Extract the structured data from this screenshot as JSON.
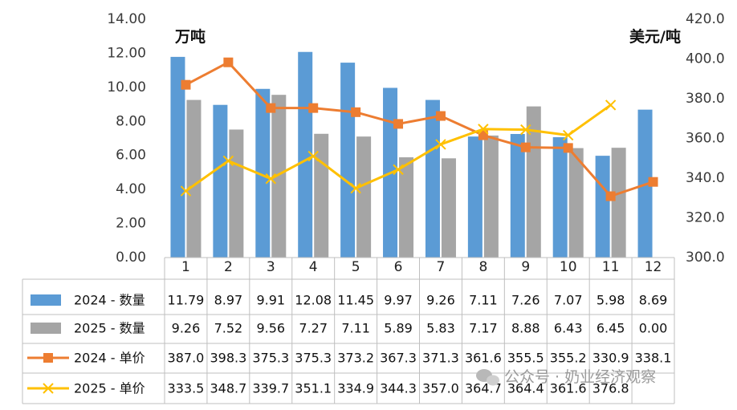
{
  "watermark": {
    "text": "公众号 · 奶业经济观察",
    "icon": "wechat-icon"
  },
  "chart_data": {
    "type": "bar",
    "combo": "bar + line with data table",
    "left_unit": "万吨",
    "right_unit": "美元/吨",
    "categories": [
      "1",
      "2",
      "3",
      "4",
      "5",
      "6",
      "7",
      "8",
      "9",
      "10",
      "11",
      "12"
    ],
    "y_left": {
      "min": 0,
      "max": 14,
      "step": 2,
      "ticks": [
        "0.00",
        "2.00",
        "4.00",
        "6.00",
        "8.00",
        "10.00",
        "12.00",
        "14.00"
      ]
    },
    "y_right": {
      "min": 300,
      "max": 420,
      "step": 20,
      "ticks": [
        "300.0",
        "320.0",
        "340.0",
        "360.0",
        "380.0",
        "400.0",
        "420.0"
      ]
    },
    "grid": false,
    "legend_placement": "data-table-left",
    "series": [
      {
        "name": "2024 - 数量",
        "type": "bar",
        "axis": "left",
        "color": "#5b9bd5",
        "values": [
          11.79,
          8.97,
          9.91,
          12.08,
          11.45,
          9.97,
          9.26,
          7.11,
          7.26,
          7.07,
          5.98,
          8.69
        ],
        "labels": [
          "11.79",
          "8.97",
          "9.91",
          "12.08",
          "11.45",
          "9.97",
          "9.26",
          "7.11",
          "7.26",
          "7.07",
          "5.98",
          "8.69"
        ]
      },
      {
        "name": "2025 - 数量",
        "type": "bar",
        "axis": "left",
        "color": "#a5a5a5",
        "values": [
          9.26,
          7.52,
          9.56,
          7.27,
          7.11,
          5.89,
          5.83,
          7.17,
          8.88,
          6.43,
          6.45,
          0.0
        ],
        "labels": [
          "9.26",
          "7.52",
          "9.56",
          "7.27",
          "7.11",
          "5.89",
          "5.83",
          "7.17",
          "8.88",
          "6.43",
          "6.45",
          "0.00"
        ]
      },
      {
        "name": "2024 - 单价",
        "type": "line",
        "axis": "right",
        "color": "#ed7d31",
        "marker": "square",
        "values": [
          387.0,
          398.3,
          375.3,
          375.3,
          373.2,
          367.3,
          371.3,
          361.6,
          355.5,
          355.2,
          330.9,
          338.1
        ],
        "labels": [
          "387.0",
          "398.3",
          "375.3",
          "375.3",
          "373.2",
          "367.3",
          "371.3",
          "361.6",
          "355.5",
          "355.2",
          "330.9",
          "338.1"
        ]
      },
      {
        "name": "2025 - 单价",
        "type": "line",
        "axis": "right",
        "color": "#ffc000",
        "marker": "x",
        "values": [
          333.5,
          348.7,
          339.7,
          351.1,
          334.9,
          344.3,
          357.0,
          364.7,
          364.4,
          361.6,
          376.8,
          null
        ],
        "labels": [
          "333.5",
          "348.7",
          "339.7",
          "351.1",
          "334.9",
          "344.3",
          "357.0",
          "364.7",
          "364.4",
          "361.6",
          "376.8",
          ""
        ]
      }
    ]
  }
}
